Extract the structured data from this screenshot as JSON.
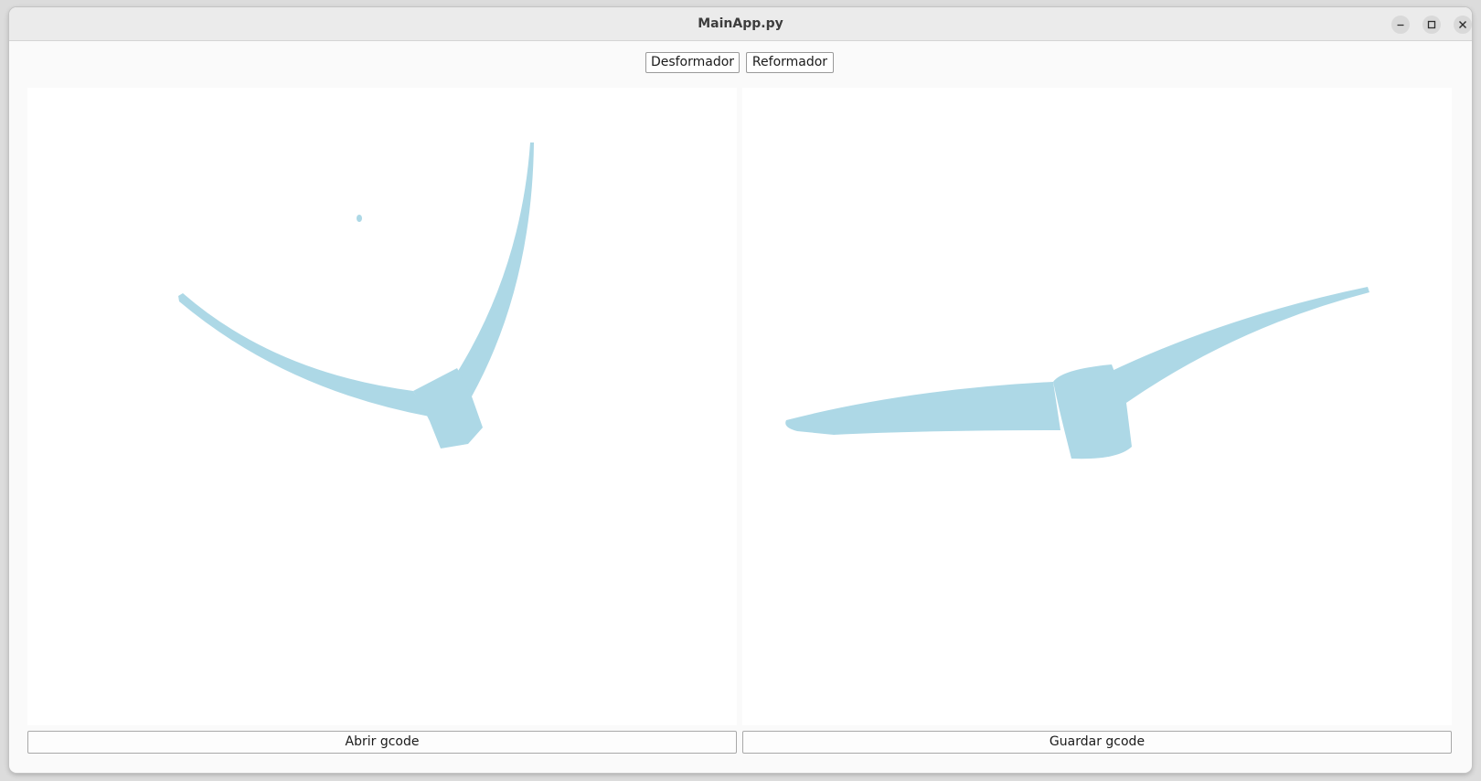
{
  "window": {
    "title": "MainApp.py"
  },
  "toolbar": {
    "desformador_label": "Desformador",
    "reformador_label": "Reformador"
  },
  "panels": {
    "left": {
      "content": "deformed-gcode-preview",
      "fill_color": "#add8e6"
    },
    "right": {
      "content": "reformed-gcode-preview",
      "fill_color": "#add8e6"
    }
  },
  "actions": {
    "open_label": "Abrir gcode",
    "save_label": "Guardar gcode"
  },
  "icons": {
    "minimize": "minimize-icon",
    "maximize": "maximize-icon",
    "close": "close-icon"
  }
}
